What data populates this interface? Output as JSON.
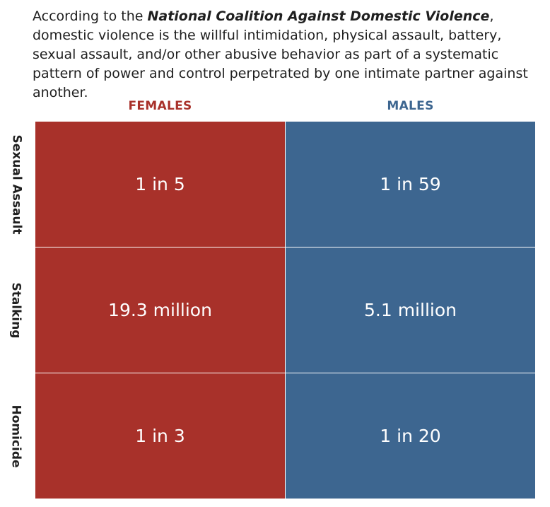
{
  "intro": {
    "prefix": "According to the ",
    "source": "National Coalition Against Domestic Violence",
    "suffix": ", domestic violence is the willful intimidation, physical assault, battery, sexual assault, and/or other abusive behavior as part of a systematic pattern of power and control perpetrated by one intimate partner against another."
  },
  "colors": {
    "females": "#a8312a",
    "males": "#3d6690"
  },
  "chart_data": {
    "type": "table",
    "columns": [
      "FEMALES",
      "MALES"
    ],
    "rows": [
      "Sexual Assault",
      "Stalking",
      "Homicide"
    ],
    "cells": [
      [
        "1 in 5",
        "1 in 59"
      ],
      [
        "19.3 million",
        "5.1 million"
      ],
      [
        "1 in 3",
        "1 in 20"
      ]
    ]
  }
}
